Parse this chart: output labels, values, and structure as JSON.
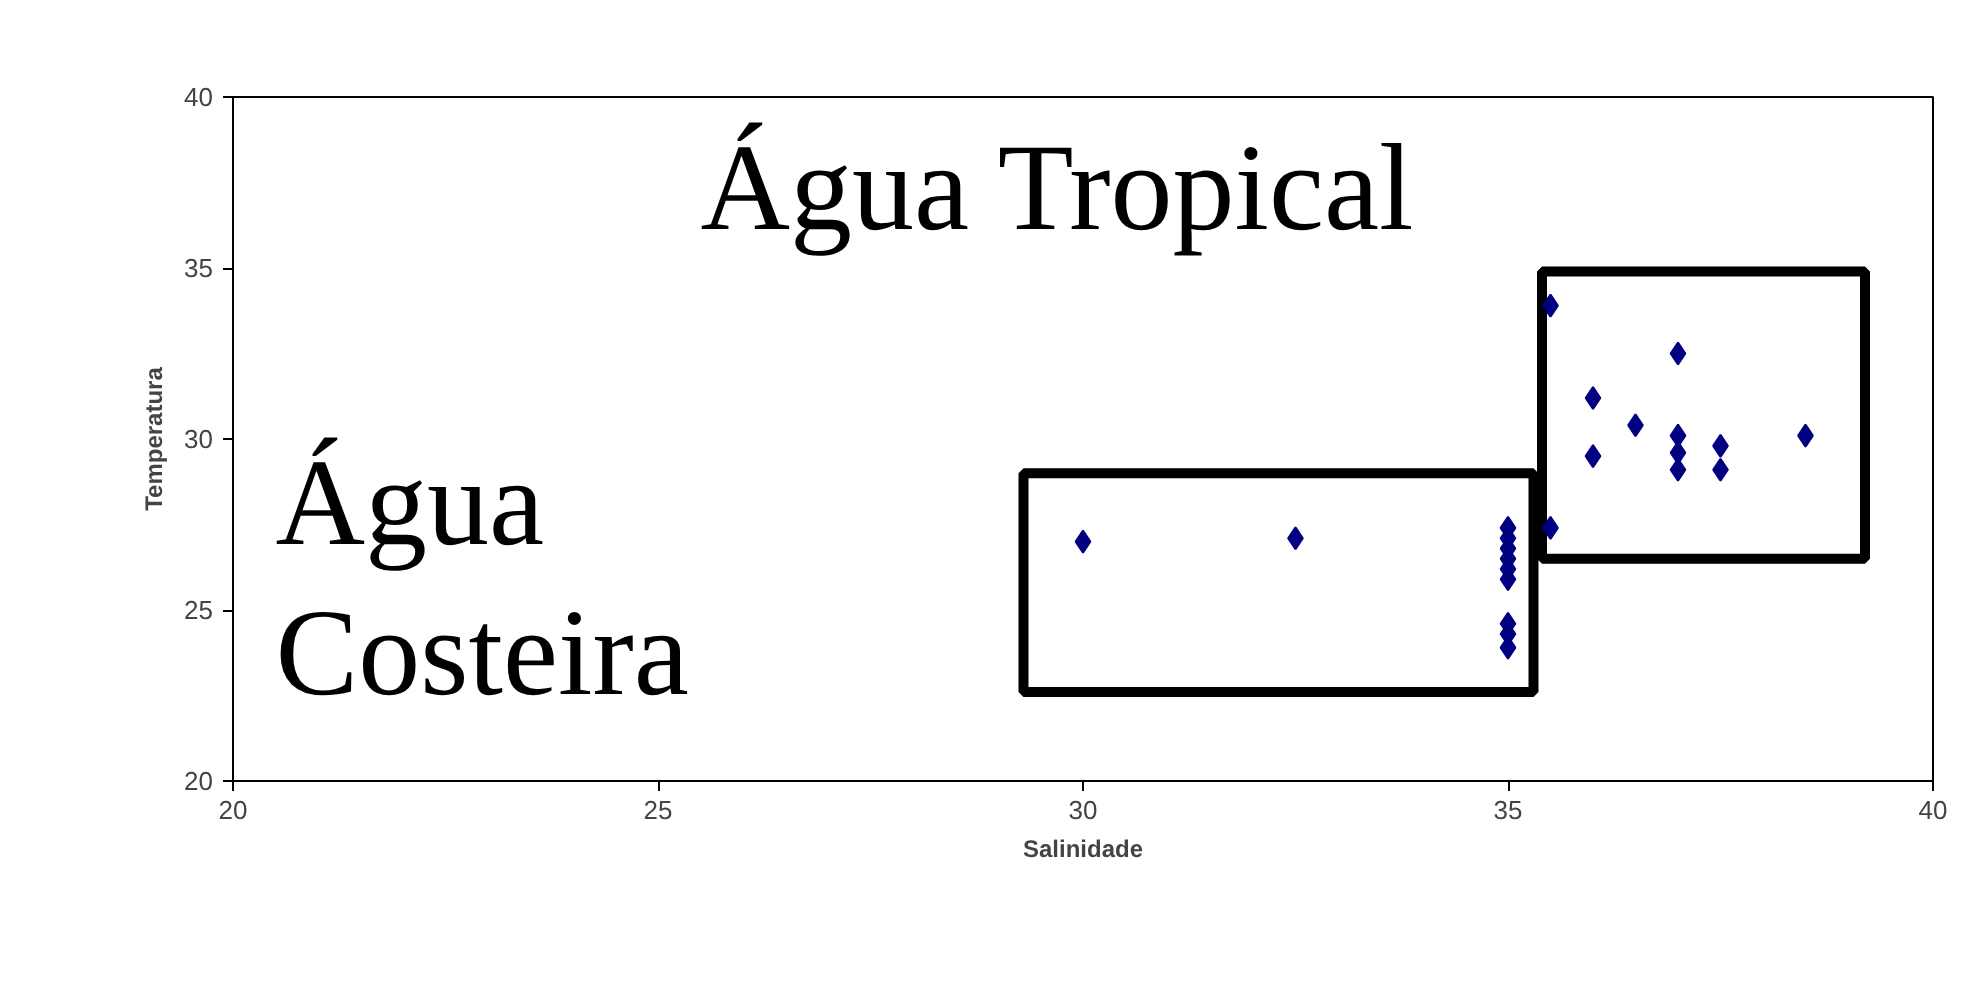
{
  "chart_data": {
    "type": "scatter",
    "xlabel": "Salinidade",
    "ylabel": "Temperatura",
    "x": [
      30,
      32.5,
      35,
      35,
      35,
      35,
      35,
      35,
      35,
      35,
      35,
      35.5,
      35.5,
      36,
      36,
      36.5,
      37,
      37,
      37,
      37,
      37.5,
      37.5,
      38.5
    ],
    "series": [
      {
        "color": "#000080",
        "values": [
          27.0,
          27.1,
          27.4,
          27.1,
          26.8,
          26.5,
          26.2,
          25.9,
          24.6,
          24.3,
          23.9,
          33.9,
          27.4,
          31.2,
          29.5,
          30.4,
          32.5,
          30.1,
          29.6,
          29.1,
          29.8,
          29.1,
          30.1
        ]
      }
    ],
    "marker": "diamond",
    "xlim": [
      20,
      40
    ],
    "xticks": [
      20,
      25,
      30,
      35,
      40
    ],
    "ylim": [
      20,
      40
    ],
    "yticks": [
      20,
      25,
      30,
      35,
      40
    ],
    "grid": false,
    "annotations": [
      "Água Tropical",
      "Água\nCosteira"
    ]
  }
}
